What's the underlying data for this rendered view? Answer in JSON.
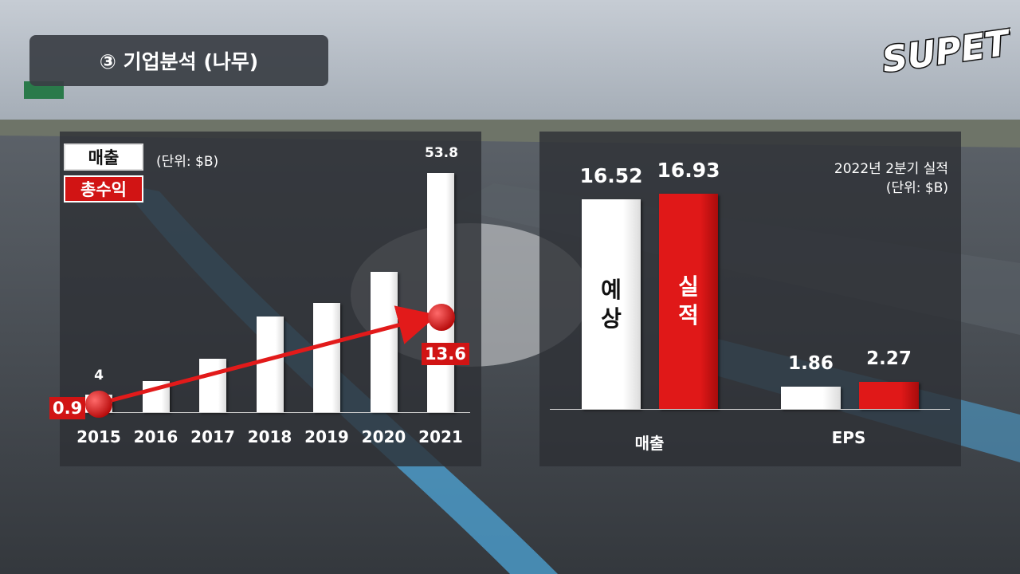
{
  "header": {
    "title": "③ 기업분석 (나무)"
  },
  "logo": {
    "text": "SUPETV"
  },
  "colors": {
    "revenue": "#ffffff",
    "profit": "#d11414",
    "panel": "#2d3035"
  },
  "chart_data": [
    {
      "type": "bar",
      "legend": [
        "매출",
        "총수익"
      ],
      "unit": "(단위: $B)",
      "categories": [
        "2015",
        "2016",
        "2017",
        "2018",
        "2019",
        "2020",
        "2021"
      ],
      "series": [
        {
          "name": "매출",
          "values": [
            4,
            7,
            12,
            21.5,
            24.5,
            31.5,
            53.8
          ]
        },
        {
          "name": "총수익",
          "values": [
            0.9,
            null,
            null,
            null,
            null,
            null,
            13.6
          ]
        }
      ],
      "data_labels": {
        "revenue_first": "4",
        "revenue_last": "53.8",
        "profit_first": "0.9",
        "profit_last": "13.6"
      },
      "ylim": [
        0,
        60
      ],
      "grid": false
    },
    {
      "type": "bar",
      "title": "2022년 2분기 실적",
      "unit": "(단위: $B)",
      "categories": [
        "매출",
        "EPS"
      ],
      "series": [
        {
          "name": "예상",
          "values": [
            16.52,
            1.86
          ]
        },
        {
          "name": "실적",
          "values": [
            16.93,
            2.27
          ]
        }
      ],
      "bar_text": {
        "forecast": "예\n상",
        "actual": "실\n적"
      },
      "value_labels": [
        "16.52",
        "16.93",
        "1.86",
        "2.27"
      ],
      "grid": false
    }
  ]
}
